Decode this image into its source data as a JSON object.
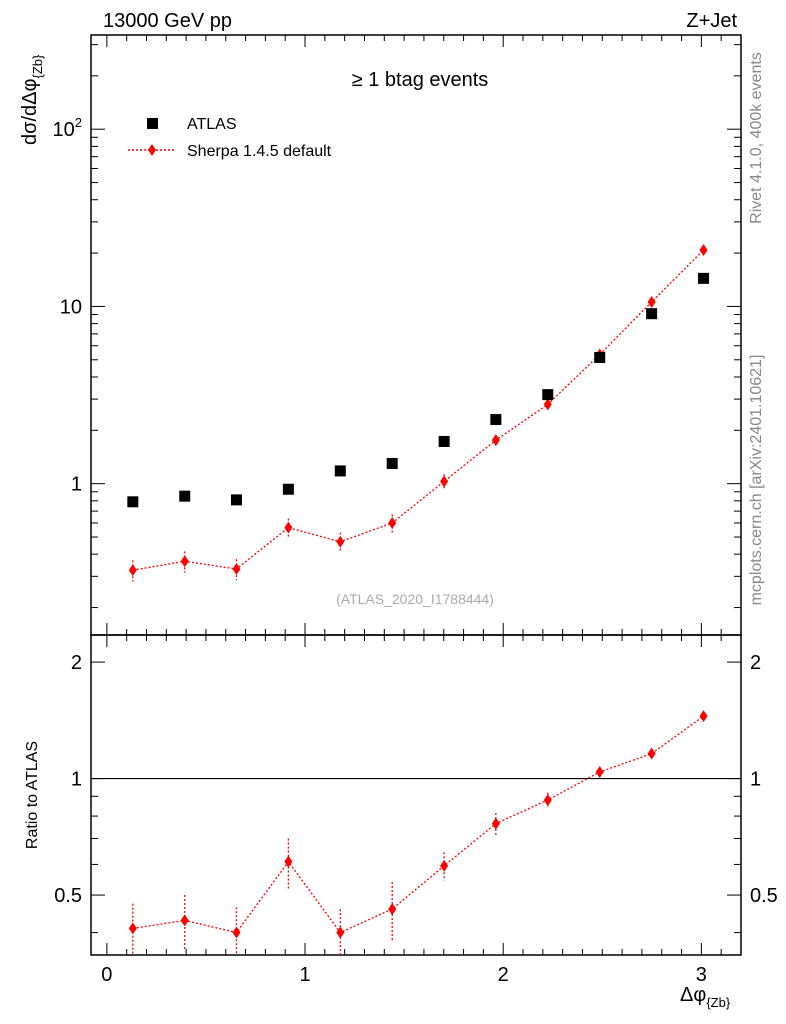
{
  "header": {
    "left_title": "13000 GeV pp",
    "right_title": "Z+Jet"
  },
  "side_labels": {
    "rivet": "Rivet 4.1.0,  400k events",
    "mcplots": "mcplots.cern.ch [arXiv:2401.10621]"
  },
  "colors": {
    "data": "#000000",
    "mc": "#ff0000",
    "axis": "#000000",
    "watermark": "#aaaaaa",
    "side_text": "#888888"
  },
  "chart_data": [
    {
      "type": "scatter",
      "panel": "main",
      "title": "≥ 1 btag events",
      "ylabel": "dσ/dΔφ",
      "ylabel_sub": "{Zb}",
      "yscale": "log",
      "xlim": [
        -0.08,
        3.2
      ],
      "ylim": [
        0.14,
        340
      ],
      "yticks": [
        {
          "value": 1,
          "label": "1"
        },
        {
          "value": 10,
          "label": "10"
        },
        {
          "value": 100,
          "label": "10",
          "exp": "2"
        }
      ],
      "watermark": "(ATLAS_2020_I1788444)",
      "legend_position": "top-left",
      "series": [
        {
          "name": "ATLAS",
          "style": "marker-square",
          "x": [
            0.131,
            0.393,
            0.654,
            0.916,
            1.178,
            1.44,
            1.702,
            1.963,
            2.225,
            2.487,
            2.749,
            3.011
          ],
          "y": [
            0.79,
            0.85,
            0.81,
            0.93,
            1.18,
            1.3,
            1.73,
            2.3,
            3.18,
            5.15,
            9.1,
            14.4
          ]
        },
        {
          "name": "Sherpa 1.4.5 default",
          "style": "line-dotted-diamond",
          "x": [
            0.131,
            0.393,
            0.654,
            0.916,
            1.178,
            1.44,
            1.702,
            1.963,
            2.225,
            2.487,
            2.749,
            3.011
          ],
          "y": [
            0.325,
            0.365,
            0.33,
            0.565,
            0.47,
            0.6,
            1.03,
            1.76,
            2.8,
            5.35,
            10.6,
            20.8
          ],
          "err": [
            0.045,
            0.05,
            0.045,
            0.07,
            0.06,
            0.07,
            0.1,
            0.12,
            0.15,
            0.25,
            0.4,
            0.6
          ]
        }
      ]
    },
    {
      "type": "line",
      "panel": "ratio",
      "ylabel": "Ratio to ATLAS",
      "xlabel": "Δφ",
      "xlabel_sub": "{Zb}",
      "xlim": [
        -0.08,
        3.2
      ],
      "ylim": [
        0.35,
        2.35
      ],
      "yscale": "log",
      "xticks": [
        {
          "value": 0,
          "label": "0"
        },
        {
          "value": 1,
          "label": "1"
        },
        {
          "value": 2,
          "label": "2"
        },
        {
          "value": 3,
          "label": "3"
        }
      ],
      "yticks": [
        {
          "value": 0.5,
          "label": "0.5"
        },
        {
          "value": 1,
          "label": "1"
        },
        {
          "value": 2,
          "label": "2"
        }
      ],
      "reference_line": 1,
      "series": [
        {
          "name": "Sherpa 1.4.5 default / ATLAS",
          "style": "line-dotted-diamond",
          "x": [
            0.131,
            0.393,
            0.654,
            0.916,
            1.178,
            1.44,
            1.702,
            1.963,
            2.225,
            2.487,
            2.749,
            3.011
          ],
          "y": [
            0.41,
            0.43,
            0.4,
            0.61,
            0.4,
            0.46,
            0.595,
            0.765,
            0.88,
            1.04,
            1.16,
            1.45
          ],
          "err": [
            0.065,
            0.07,
            0.065,
            0.09,
            0.06,
            0.08,
            0.05,
            0.05,
            0.04,
            0.03,
            0.03,
            0.03
          ]
        }
      ]
    }
  ]
}
